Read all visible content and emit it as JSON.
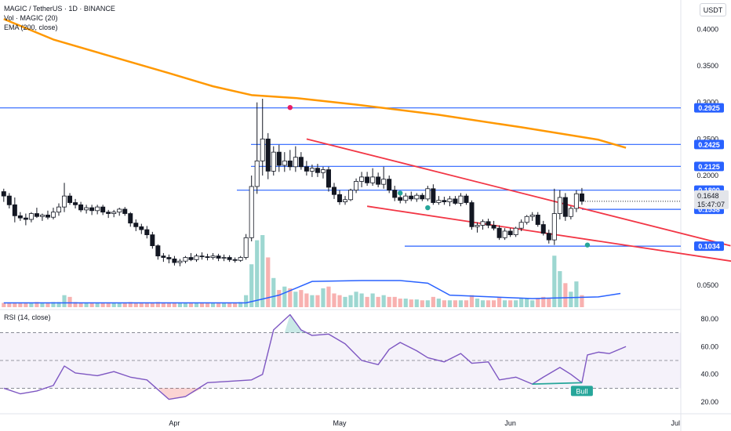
{
  "header": {
    "title": "MAGIC / TetherUS · 1D · BINANCE",
    "vol_label": "Vol · MAGIC (20)",
    "ema_label": "EMA (200, close)",
    "currency": "USDT"
  },
  "rsi_panel": {
    "label": "RSI (14, close)"
  },
  "colors": {
    "up": "#26a69a",
    "down": "#ef5350",
    "ema": "#ff9800",
    "hline": "#2962ff",
    "channel": "#f23645",
    "rsi": "#7e57c2",
    "vol_ma": "#2962ff"
  },
  "chart_data": [
    {
      "type": "candlestick",
      "title": "MAGIC / TetherUS · 1D · BINANCE",
      "x_tick_labels": [
        "Apr",
        "May",
        "Jun",
        "Jul"
      ],
      "price_axis": {
        "ticks": [
          "0.4000",
          "0.3500",
          "0.3000",
          "0.2500",
          "0.2000",
          "0.0500"
        ],
        "tick_values": [
          0.4,
          0.35,
          0.3,
          0.25,
          0.2,
          0.05
        ],
        "range": [
          0.02,
          0.44
        ]
      },
      "horizontal_levels": [
        {
          "label": "0.2925",
          "value": 0.2925
        },
        {
          "label": "0.2425",
          "value": 0.2425
        },
        {
          "label": "0.2125",
          "value": 0.2125
        },
        {
          "label": "0.1800",
          "value": 0.18
        },
        {
          "label": "0.1538",
          "value": 0.1538
        },
        {
          "label": "0.1034",
          "value": 0.1034
        }
      ],
      "last_price": {
        "label": "0.1648",
        "countdown": "15:47:07",
        "value": 0.1648
      },
      "start_date": "2024-03-01",
      "candles": [
        [
          0.178,
          0.182,
          0.164,
          0.172
        ],
        [
          0.172,
          0.176,
          0.155,
          0.16
        ],
        [
          0.16,
          0.17,
          0.136,
          0.145
        ],
        [
          0.145,
          0.15,
          0.138,
          0.142
        ],
        [
          0.142,
          0.148,
          0.132,
          0.14
        ],
        [
          0.14,
          0.15,
          0.136,
          0.148
        ],
        [
          0.148,
          0.156,
          0.142,
          0.144
        ],
        [
          0.144,
          0.148,
          0.138,
          0.146
        ],
        [
          0.146,
          0.152,
          0.14,
          0.143
        ],
        [
          0.143,
          0.156,
          0.14,
          0.15
        ],
        [
          0.15,
          0.162,
          0.145,
          0.157
        ],
        [
          0.157,
          0.19,
          0.15,
          0.172
        ],
        [
          0.172,
          0.176,
          0.16,
          0.163
        ],
        [
          0.163,
          0.168,
          0.155,
          0.16
        ],
        [
          0.16,
          0.164,
          0.15,
          0.153
        ],
        [
          0.153,
          0.16,
          0.148,
          0.156
        ],
        [
          0.156,
          0.16,
          0.146,
          0.152
        ],
        [
          0.152,
          0.16,
          0.147,
          0.157
        ],
        [
          0.157,
          0.16,
          0.146,
          0.15
        ],
        [
          0.15,
          0.153,
          0.142,
          0.148
        ],
        [
          0.148,
          0.153,
          0.143,
          0.15
        ],
        [
          0.15,
          0.156,
          0.145,
          0.154
        ],
        [
          0.154,
          0.157,
          0.145,
          0.148
        ],
        [
          0.148,
          0.15,
          0.13,
          0.135
        ],
        [
          0.135,
          0.14,
          0.124,
          0.13
        ],
        [
          0.13,
          0.134,
          0.12,
          0.126
        ],
        [
          0.126,
          0.131,
          0.114,
          0.119
        ],
        [
          0.119,
          0.123,
          0.1,
          0.104
        ],
        [
          0.104,
          0.106,
          0.085,
          0.09
        ],
        [
          0.09,
          0.094,
          0.082,
          0.088
        ],
        [
          0.088,
          0.092,
          0.08,
          0.086
        ],
        [
          0.086,
          0.09,
          0.077,
          0.081
        ],
        [
          0.081,
          0.086,
          0.076,
          0.083
        ],
        [
          0.083,
          0.09,
          0.08,
          0.088
        ],
        [
          0.088,
          0.094,
          0.083,
          0.085
        ],
        [
          0.085,
          0.093,
          0.082,
          0.09
        ],
        [
          0.09,
          0.095,
          0.085,
          0.089
        ],
        [
          0.089,
          0.093,
          0.084,
          0.088
        ],
        [
          0.088,
          0.094,
          0.085,
          0.09
        ],
        [
          0.09,
          0.093,
          0.083,
          0.087
        ],
        [
          0.087,
          0.092,
          0.083,
          0.088
        ],
        [
          0.088,
          0.091,
          0.082,
          0.085
        ],
        [
          0.085,
          0.088,
          0.081,
          0.084
        ],
        [
          0.084,
          0.09,
          0.082,
          0.088
        ],
        [
          0.088,
          0.12,
          0.085,
          0.115
        ],
        [
          0.115,
          0.2,
          0.11,
          0.185
        ],
        [
          0.185,
          0.3,
          0.175,
          0.22
        ],
        [
          0.22,
          0.305,
          0.2,
          0.25
        ],
        [
          0.25,
          0.258,
          0.195,
          0.206
        ],
        [
          0.206,
          0.24,
          0.2,
          0.232
        ],
        [
          0.232,
          0.242,
          0.205,
          0.214
        ],
        [
          0.214,
          0.232,
          0.205,
          0.22
        ],
        [
          0.22,
          0.235,
          0.207,
          0.212
        ],
        [
          0.212,
          0.24,
          0.205,
          0.225
        ],
        [
          0.225,
          0.232,
          0.208,
          0.212
        ],
        [
          0.212,
          0.22,
          0.2,
          0.206
        ],
        [
          0.206,
          0.215,
          0.198,
          0.21
        ],
        [
          0.21,
          0.216,
          0.198,
          0.204
        ],
        [
          0.204,
          0.212,
          0.196,
          0.208
        ],
        [
          0.208,
          0.212,
          0.178,
          0.184
        ],
        [
          0.184,
          0.19,
          0.168,
          0.174
        ],
        [
          0.174,
          0.18,
          0.16,
          0.164
        ],
        [
          0.164,
          0.172,
          0.16,
          0.167
        ],
        [
          0.167,
          0.182,
          0.165,
          0.18
        ],
        [
          0.18,
          0.196,
          0.176,
          0.192
        ],
        [
          0.192,
          0.205,
          0.184,
          0.198
        ],
        [
          0.198,
          0.205,
          0.186,
          0.19
        ],
        [
          0.19,
          0.21,
          0.186,
          0.198
        ],
        [
          0.198,
          0.204,
          0.184,
          0.188
        ],
        [
          0.188,
          0.212,
          0.182,
          0.195
        ],
        [
          0.195,
          0.2,
          0.176,
          0.18
        ],
        [
          0.18,
          0.186,
          0.165,
          0.17
        ],
        [
          0.17,
          0.178,
          0.162,
          0.166
        ],
        [
          0.166,
          0.176,
          0.162,
          0.172
        ],
        [
          0.172,
          0.178,
          0.165,
          0.168
        ],
        [
          0.168,
          0.176,
          0.164,
          0.173
        ],
        [
          0.173,
          0.176,
          0.165,
          0.168
        ],
        [
          0.168,
          0.186,
          0.165,
          0.182
        ],
        [
          0.182,
          0.188,
          0.16,
          0.163
        ],
        [
          0.163,
          0.172,
          0.16,
          0.166
        ],
        [
          0.166,
          0.171,
          0.16,
          0.164
        ],
        [
          0.164,
          0.172,
          0.158,
          0.168
        ],
        [
          0.168,
          0.172,
          0.16,
          0.162
        ],
        [
          0.162,
          0.176,
          0.158,
          0.172
        ],
        [
          0.172,
          0.175,
          0.16,
          0.163
        ],
        [
          0.163,
          0.166,
          0.126,
          0.13
        ],
        [
          0.13,
          0.136,
          0.122,
          0.132
        ],
        [
          0.132,
          0.14,
          0.126,
          0.137
        ],
        [
          0.137,
          0.141,
          0.128,
          0.132
        ],
        [
          0.132,
          0.138,
          0.125,
          0.128
        ],
        [
          0.128,
          0.132,
          0.112,
          0.115
        ],
        [
          0.115,
          0.128,
          0.112,
          0.124
        ],
        [
          0.124,
          0.128,
          0.116,
          0.119
        ],
        [
          0.119,
          0.13,
          0.116,
          0.128
        ],
        [
          0.128,
          0.14,
          0.124,
          0.136
        ],
        [
          0.136,
          0.146,
          0.133,
          0.144
        ],
        [
          0.144,
          0.15,
          0.138,
          0.146
        ],
        [
          0.146,
          0.15,
          0.13,
          0.133
        ],
        [
          0.133,
          0.138,
          0.118,
          0.121
        ],
        [
          0.121,
          0.126,
          0.107,
          0.112
        ],
        [
          0.112,
          0.182,
          0.105,
          0.148
        ],
        [
          0.148,
          0.18,
          0.14,
          0.17
        ],
        [
          0.17,
          0.176,
          0.138,
          0.144
        ],
        [
          0.144,
          0.158,
          0.14,
          0.155
        ],
        [
          0.155,
          0.18,
          0.15,
          0.175
        ],
        [
          0.175,
          0.183,
          0.16,
          0.1648
        ]
      ],
      "ema_200": [
        {
          "x": "2024-03-01",
          "y": 0.414
        },
        {
          "x": "2024-03-10",
          "y": 0.386
        },
        {
          "x": "2024-03-20",
          "y": 0.364
        },
        {
          "x": "2024-03-31",
          "y": 0.34
        },
        {
          "x": "2024-04-08",
          "y": 0.322
        },
        {
          "x": "2024-04-15",
          "y": 0.31
        },
        {
          "x": "2024-04-23",
          "y": 0.306
        },
        {
          "x": "2024-05-04",
          "y": 0.297
        },
        {
          "x": "2024-05-19",
          "y": 0.283
        },
        {
          "x": "2024-06-03",
          "y": 0.266
        },
        {
          "x": "2024-06-17",
          "y": 0.249
        },
        {
          "x": "2024-06-22",
          "y": 0.238
        }
      ],
      "channel_upper": [
        {
          "x": "2024-04-25",
          "y": 0.25
        },
        {
          "x": "2024-07-11",
          "y": 0.104
        }
      ],
      "channel_lower": [
        {
          "x": "2024-05-06",
          "y": 0.158
        },
        {
          "x": "2024-07-12",
          "y": 0.082
        }
      ],
      "volume": [
        5,
        5,
        5,
        5,
        5,
        5,
        6,
        5,
        5,
        6,
        6,
        14,
        12,
        6,
        5,
        5,
        5,
        5,
        5,
        5,
        5,
        5,
        5,
        6,
        5,
        5,
        5,
        5,
        6,
        5,
        5,
        5,
        5,
        5,
        5,
        5,
        5,
        5,
        5,
        5,
        5,
        5,
        5,
        6,
        14,
        50,
        78,
        84,
        58,
        34,
        20,
        24,
        22,
        18,
        20,
        16,
        14,
        14,
        22,
        24,
        16,
        14,
        12,
        14,
        18,
        16,
        12,
        16,
        12,
        14,
        12,
        12,
        10,
        10,
        9,
        9,
        8,
        8,
        12,
        10,
        8,
        8,
        8,
        8,
        8,
        14,
        10,
        8,
        8,
        8,
        12,
        8,
        8,
        8,
        10,
        10,
        8,
        10,
        12,
        10,
        60,
        42,
        28,
        18,
        30,
        14
      ],
      "volume_ma": [
        {
          "x": "2024-03-01",
          "y": 5
        },
        {
          "x": "2024-04-14",
          "y": 5
        },
        {
          "x": "2024-04-20",
          "y": 14
        },
        {
          "x": "2024-04-26",
          "y": 30
        },
        {
          "x": "2024-05-05",
          "y": 31
        },
        {
          "x": "2024-05-12",
          "y": 31
        },
        {
          "x": "2024-05-17",
          "y": 28
        },
        {
          "x": "2024-05-21",
          "y": 14
        },
        {
          "x": "2024-06-05",
          "y": 10
        },
        {
          "x": "2024-06-17",
          "y": 12
        },
        {
          "x": "2024-06-21",
          "y": 16
        }
      ],
      "markers": [
        {
          "x": "2024-04-22",
          "y": 0.293,
          "shape": "circle",
          "color": "#e91e63"
        },
        {
          "x": "2024-05-12",
          "y": 0.176,
          "shape": "circle",
          "color": "#26a69a"
        },
        {
          "x": "2024-05-17",
          "y": 0.156,
          "shape": "circle",
          "color": "#26a69a"
        },
        {
          "x": "2024-06-15",
          "y": 0.105,
          "shape": "circle",
          "color": "#26a69a"
        }
      ]
    },
    {
      "type": "line",
      "title": "RSI (14, close)",
      "y_axis": {
        "ticks": [
          "80.00",
          "60.00",
          "40.00",
          "20.00"
        ],
        "tick_values": [
          80,
          60,
          40,
          20
        ],
        "range": [
          15,
          85
        ]
      },
      "band": {
        "upper": 70,
        "middle": 50,
        "lower": 30
      },
      "points": [
        {
          "x": "2024-03-01",
          "y": 30
        },
        {
          "x": "2024-03-04",
          "y": 26
        },
        {
          "x": "2024-03-07",
          "y": 28
        },
        {
          "x": "2024-03-10",
          "y": 32
        },
        {
          "x": "2024-03-12",
          "y": 46
        },
        {
          "x": "2024-03-14",
          "y": 41
        },
        {
          "x": "2024-03-18",
          "y": 39
        },
        {
          "x": "2024-03-21",
          "y": 42
        },
        {
          "x": "2024-03-24",
          "y": 38
        },
        {
          "x": "2024-03-27",
          "y": 36
        },
        {
          "x": "2024-03-31",
          "y": 22
        },
        {
          "x": "2024-04-03",
          "y": 24
        },
        {
          "x": "2024-04-07",
          "y": 34
        },
        {
          "x": "2024-04-11",
          "y": 35
        },
        {
          "x": "2024-04-15",
          "y": 36
        },
        {
          "x": "2024-04-17",
          "y": 40
        },
        {
          "x": "2024-04-19",
          "y": 72
        },
        {
          "x": "2024-04-22",
          "y": 83
        },
        {
          "x": "2024-04-24",
          "y": 72
        },
        {
          "x": "2024-04-26",
          "y": 68
        },
        {
          "x": "2024-04-29",
          "y": 69
        },
        {
          "x": "2024-05-02",
          "y": 62
        },
        {
          "x": "2024-05-05",
          "y": 50
        },
        {
          "x": "2024-05-08",
          "y": 47
        },
        {
          "x": "2024-05-10",
          "y": 58
        },
        {
          "x": "2024-05-12",
          "y": 63
        },
        {
          "x": "2024-05-15",
          "y": 57
        },
        {
          "x": "2024-05-17",
          "y": 52
        },
        {
          "x": "2024-05-20",
          "y": 49
        },
        {
          "x": "2024-05-23",
          "y": 55
        },
        {
          "x": "2024-05-25",
          "y": 48
        },
        {
          "x": "2024-05-28",
          "y": 49
        },
        {
          "x": "2024-05-30",
          "y": 36
        },
        {
          "x": "2024-06-02",
          "y": 38
        },
        {
          "x": "2024-06-05",
          "y": 33
        },
        {
          "x": "2024-06-07",
          "y": 38
        },
        {
          "x": "2024-06-10",
          "y": 45
        },
        {
          "x": "2024-06-12",
          "y": 40
        },
        {
          "x": "2024-06-14",
          "y": 34
        },
        {
          "x": "2024-06-15",
          "y": 54
        },
        {
          "x": "2024-06-17",
          "y": 56
        },
        {
          "x": "2024-06-19",
          "y": 55
        },
        {
          "x": "2024-06-22",
          "y": 60
        }
      ],
      "divergence": {
        "from": {
          "x": "2024-06-05",
          "y": 33
        },
        "to": {
          "x": "2024-06-14",
          "y": 34
        },
        "label": "Bull"
      }
    }
  ]
}
